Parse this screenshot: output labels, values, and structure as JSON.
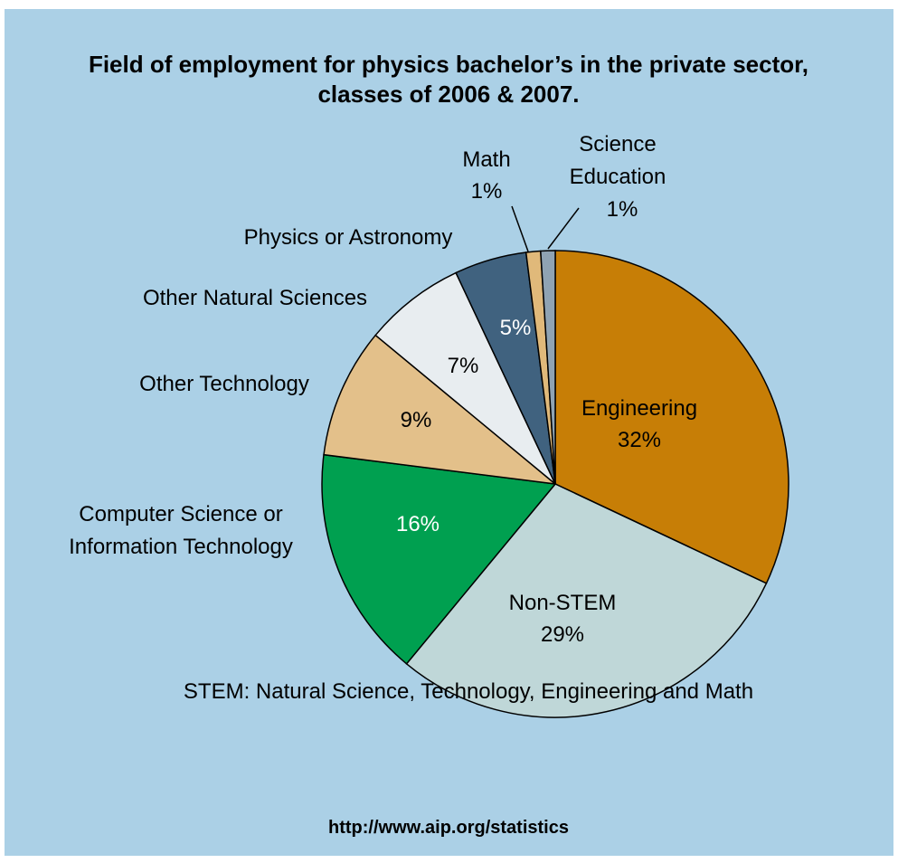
{
  "chart_data": {
    "type": "pie",
    "title": "Field of employment for physics bachelor’s in the private sector,\nclasses of 2006 & 2007.",
    "categories": [
      "Engineering",
      "Non-STEM",
      "Computer Science or\nInformation Technology",
      "Other Technology",
      "Other Natural Sciences",
      "Physics or Astronomy",
      "Math",
      "Science\nEducation"
    ],
    "values": [
      32,
      29,
      16,
      9,
      7,
      5,
      1,
      1
    ],
    "value_labels": [
      "32%",
      "29%",
      "16%",
      "9%",
      "7%",
      "5%",
      "1%",
      "1%"
    ],
    "colors": [
      "#c77e06",
      "#bfd7d8",
      "#00a050",
      "#e3c08a",
      "#e8edf0",
      "#40627f",
      "#e0b97a",
      "#8fa3b3"
    ],
    "annotations": [
      "STEM: Natural Science, Technology, Engineering and Math",
      "http://www.aip.org/statistics"
    ]
  }
}
